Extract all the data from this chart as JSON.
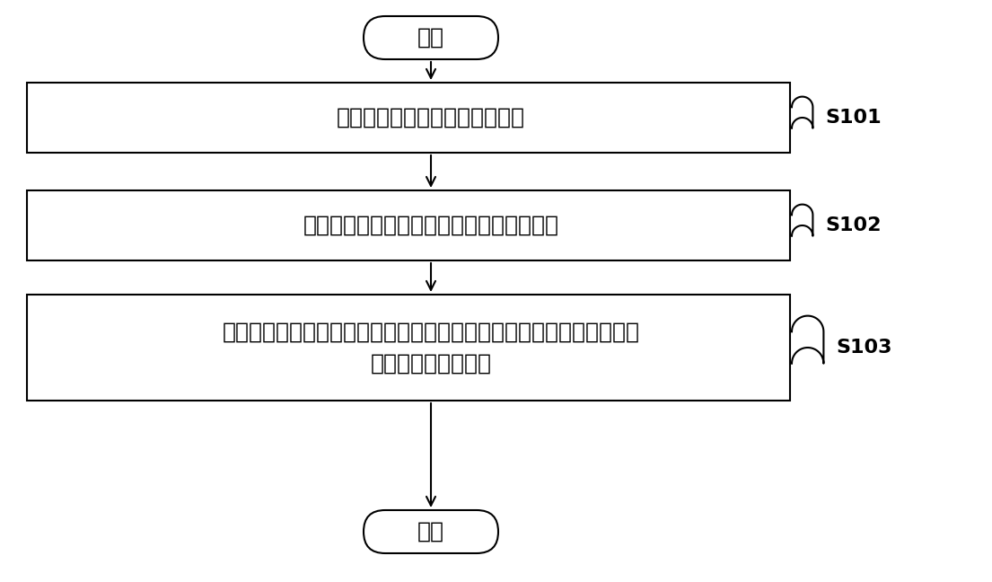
{
  "background_color": "#ffffff",
  "start_text": "开始",
  "end_text": "结束",
  "box1_text": "获取用于充电的发射线圈的位置",
  "box2_text": "至少根据所述发射线圈的位置确定行进路线",
  "box3_line1": "按照所述行进路线控制所述汽车行驶，以使所述接收线圈的至少一部分",
  "box3_line2": "与所述发射线圈对准",
  "label1": "S101",
  "label2": "S102",
  "label3": "S103",
  "box_line_color": "#000000",
  "arrow_color": "#000000",
  "text_color": "#000000",
  "font_size": 18,
  "label_font_size": 16,
  "fig_width": 11.05,
  "fig_height": 6.48,
  "dpi": 100
}
